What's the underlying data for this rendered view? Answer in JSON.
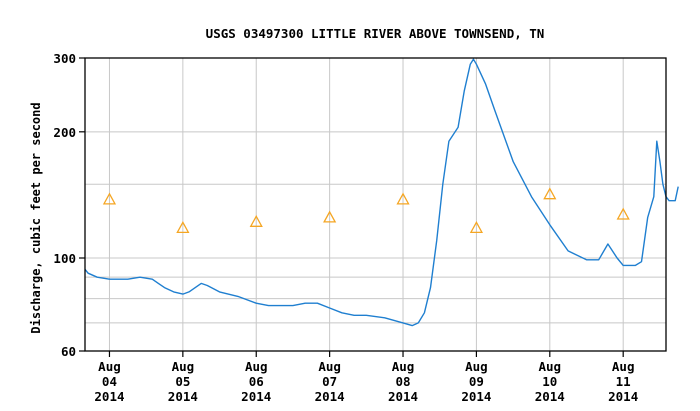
{
  "chart_data": {
    "type": "line",
    "title": "USGS 03497300 LITTLE RIVER ABOVE TOWNSEND, TN",
    "ylabel": "Discharge, cubic feet per second",
    "xlabel": "",
    "y_scale": "log",
    "ylim": [
      60,
      300
    ],
    "y_ticks": [
      {
        "value": 60,
        "label": "60"
      },
      {
        "value": 100,
        "label": "100"
      },
      {
        "value": 200,
        "label": "200"
      },
      {
        "value": 300,
        "label": "300"
      }
    ],
    "y_minor_gridlines": [
      70,
      80,
      90,
      150
    ],
    "xlim": [
      "2014-08-03T16:00",
      "2014-08-11T14:00"
    ],
    "x_ticks": [
      {
        "date": "2014-08-04",
        "lines": [
          "Aug",
          "04",
          "2014"
        ]
      },
      {
        "date": "2014-08-05",
        "lines": [
          "Aug",
          "05",
          "2014"
        ]
      },
      {
        "date": "2014-08-06",
        "lines": [
          "Aug",
          "06",
          "2014"
        ]
      },
      {
        "date": "2014-08-07",
        "lines": [
          "Aug",
          "07",
          "2014"
        ]
      },
      {
        "date": "2014-08-08",
        "lines": [
          "Aug",
          "08",
          "2014"
        ]
      },
      {
        "date": "2014-08-09",
        "lines": [
          "Aug",
          "09",
          "2014"
        ]
      },
      {
        "date": "2014-08-10",
        "lines": [
          "Aug",
          "10",
          "2014"
        ]
      },
      {
        "date": "2014-08-11",
        "lines": [
          "Aug",
          "11",
          "2014"
        ]
      }
    ],
    "grid": true,
    "colors": {
      "series": "#1f7fd0",
      "median": "#f5a623",
      "grid": "#c8c8c8",
      "axis": "#000000"
    },
    "series": [
      {
        "style": "line",
        "points": [
          [
            "2014-08-03T16:00",
            94
          ],
          [
            "2014-08-03T17:00",
            92
          ],
          [
            "2014-08-03T20:00",
            90
          ],
          [
            "2014-08-04T00:00",
            89
          ],
          [
            "2014-08-04T06:00",
            89
          ],
          [
            "2014-08-04T10:00",
            90
          ],
          [
            "2014-08-04T14:00",
            89
          ],
          [
            "2014-08-04T16:00",
            87
          ],
          [
            "2014-08-04T18:00",
            85
          ],
          [
            "2014-08-04T21:00",
            83
          ],
          [
            "2014-08-05T00:00",
            82
          ],
          [
            "2014-08-05T02:00",
            83
          ],
          [
            "2014-08-05T06:00",
            87
          ],
          [
            "2014-08-05T08:00",
            86
          ],
          [
            "2014-08-05T12:00",
            83
          ],
          [
            "2014-08-05T18:00",
            81
          ],
          [
            "2014-08-06T00:00",
            78
          ],
          [
            "2014-08-06T04:00",
            77
          ],
          [
            "2014-08-06T12:00",
            77
          ],
          [
            "2014-08-06T16:00",
            78
          ],
          [
            "2014-08-06T20:00",
            78
          ],
          [
            "2014-08-07T00:00",
            76
          ],
          [
            "2014-08-07T04:00",
            74
          ],
          [
            "2014-08-07T08:00",
            73
          ],
          [
            "2014-08-07T12:00",
            73
          ],
          [
            "2014-08-07T18:00",
            72
          ],
          [
            "2014-08-08T00:00",
            70
          ],
          [
            "2014-08-08T03:00",
            69
          ],
          [
            "2014-08-08T05:00",
            70
          ],
          [
            "2014-08-08T07:00",
            74
          ],
          [
            "2014-08-08T09:00",
            85
          ],
          [
            "2014-08-08T11:00",
            110
          ],
          [
            "2014-08-08T13:00",
            150
          ],
          [
            "2014-08-08T15:00",
            190
          ],
          [
            "2014-08-08T18:00",
            205
          ],
          [
            "2014-08-08T20:00",
            250
          ],
          [
            "2014-08-08T22:00",
            290
          ],
          [
            "2014-08-08T23:00",
            298
          ],
          [
            "2014-08-09T00:00",
            290
          ],
          [
            "2014-08-09T03:00",
            260
          ],
          [
            "2014-08-09T06:00",
            225
          ],
          [
            "2014-08-09T12:00",
            170
          ],
          [
            "2014-08-09T18:00",
            140
          ],
          [
            "2014-08-10T00:00",
            120
          ],
          [
            "2014-08-10T06:00",
            104
          ],
          [
            "2014-08-10T12:00",
            99
          ],
          [
            "2014-08-10T16:00",
            99
          ],
          [
            "2014-08-10T19:00",
            108
          ],
          [
            "2014-08-10T22:00",
            100
          ],
          [
            "2014-08-11T00:00",
            96
          ],
          [
            "2014-08-11T04:00",
            96
          ],
          [
            "2014-08-11T06:00",
            98
          ],
          [
            "2014-08-11T08:00",
            125
          ],
          [
            "2014-08-11T10:00",
            140
          ],
          [
            "2014-08-11T11:00",
            190
          ],
          [
            "2014-08-11T12:00",
            170
          ],
          [
            "2014-08-11T13:00",
            150
          ],
          [
            "2014-08-11T14:00",
            140
          ],
          [
            "2014-08-11T15:00",
            137
          ],
          [
            "2014-08-11T17:00",
            137
          ],
          [
            "2014-08-11T18:00",
            148
          ]
        ]
      },
      {
        "style": "triangle-markers",
        "points": [
          [
            "2014-08-04T00:00",
            138
          ],
          [
            "2014-08-05T00:00",
            118
          ],
          [
            "2014-08-06T00:00",
            122
          ],
          [
            "2014-08-07T00:00",
            125
          ],
          [
            "2014-08-08T00:00",
            138
          ],
          [
            "2014-08-09T00:00",
            118
          ],
          [
            "2014-08-10T00:00",
            142
          ],
          [
            "2014-08-11T00:00",
            127
          ]
        ]
      }
    ]
  }
}
